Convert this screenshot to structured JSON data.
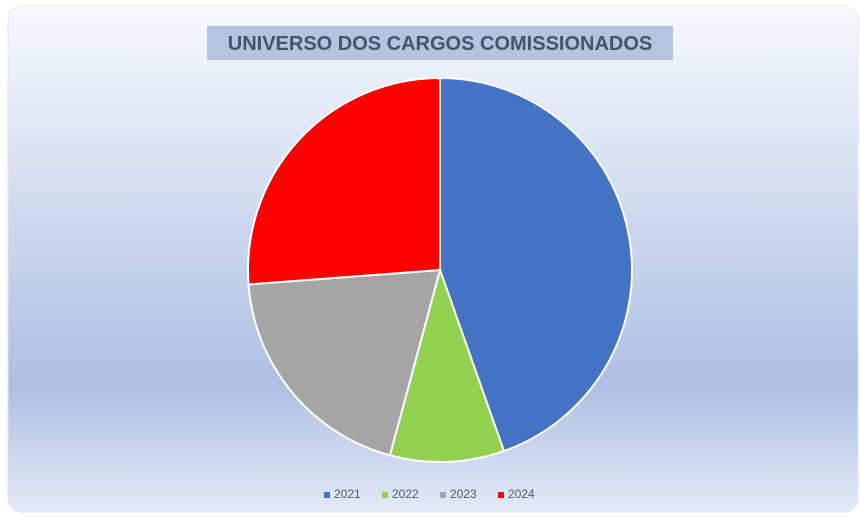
{
  "chart_data": {
    "type": "pie",
    "title": "UNIVERSO DOS CARGOS COMISSIONADOS",
    "categories": [
      "2021",
      "2022",
      "2023",
      "2024"
    ],
    "values": [
      44.6,
      9.6,
      19.6,
      26.2
    ],
    "colors": [
      "#4472c4",
      "#92d050",
      "#a5a5a5",
      "#ff0000"
    ],
    "legend": "bottom"
  }
}
